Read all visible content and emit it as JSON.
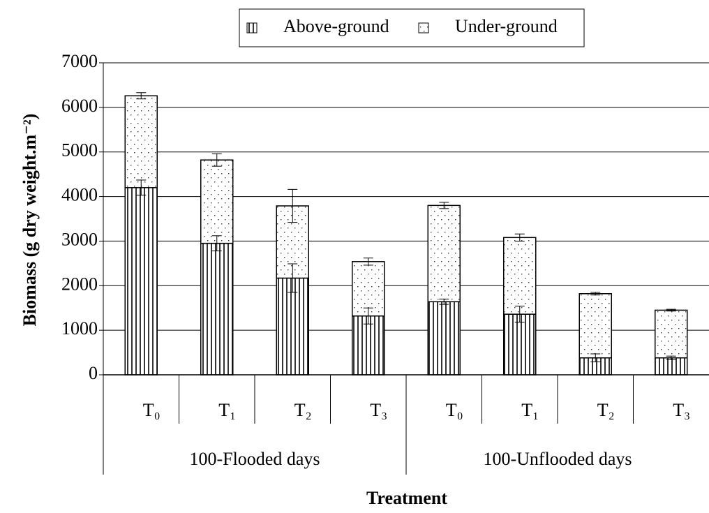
{
  "chart_data": {
    "type": "stacked-bar",
    "y_label": "Biomass (g dry weight.m⁻²)",
    "x_label": "Treatment",
    "categories": [
      "T₀",
      "T₁",
      "T₂",
      "T₃",
      "T₀",
      "T₁",
      "T₂",
      "T₃"
    ],
    "groups": [
      "100-Flooded days",
      "100-Unflooded days"
    ],
    "series": [
      {
        "name": "Above-ground",
        "color": "#000000",
        "pattern": "vertical-lines",
        "values": [
          4200,
          2950,
          2170,
          1320,
          1640,
          1360,
          380,
          380
        ],
        "errors": [
          170,
          170,
          320,
          180,
          60,
          180,
          90,
          40
        ]
      },
      {
        "name": "Under-ground",
        "color": "#000000",
        "pattern": "dots",
        "values": [
          2060,
          1870,
          1620,
          1220,
          2160,
          1720,
          1440,
          1070
        ],
        "errors": [
          70,
          140,
          370,
          80,
          70,
          80,
          30,
          20
        ]
      }
    ],
    "ylim": [
      0,
      7000
    ],
    "yticks": [
      0,
      1000,
      2000,
      3000,
      4000,
      5000,
      6000,
      7000
    ],
    "grid": true,
    "legend": "top"
  }
}
